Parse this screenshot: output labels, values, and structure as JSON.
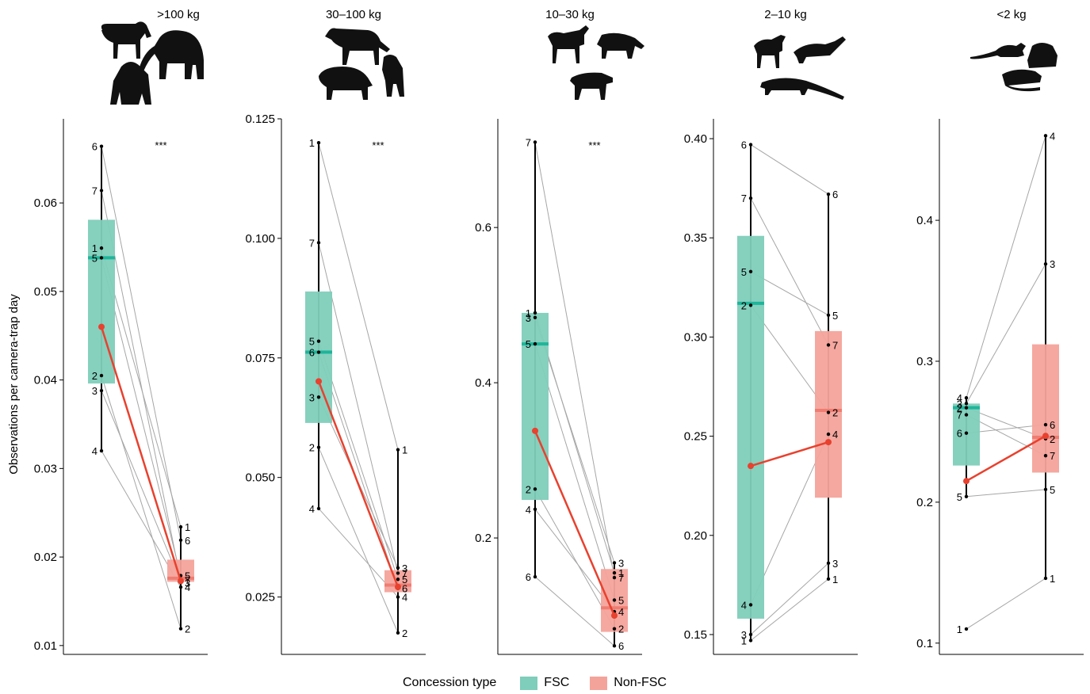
{
  "y_axis_label": "Observations per camera-trap day",
  "legend": {
    "title": "Concession type",
    "items": [
      {
        "label": "FSC",
        "color": "#7fcdbb"
      },
      {
        "label": "Non-FSC",
        "color": "#f4a39b"
      }
    ]
  },
  "colors": {
    "fsc_box": "#7fcdbb",
    "fsc_median": "#1fb59a",
    "nonfsc_box": "#f4a39b",
    "nonfsc_median": "#ef7d72",
    "mean_line": "#e8412e",
    "pair_line": "#a6a6a6"
  },
  "chart_data": [
    {
      "type": "box",
      "title": ">100 kg",
      "significance": "***",
      "icon": "large-mammals-silhouette-icon",
      "ylim": [
        0.009,
        0.0695
      ],
      "yticks": [
        0.01,
        0.02,
        0.03,
        0.04,
        0.05,
        0.06
      ],
      "tick_labels": [
        "0.01",
        "0.02",
        "0.03",
        "0.04",
        "0.05",
        "0.06"
      ],
      "fsc": {
        "box": {
          "q1": 0.0396,
          "median": 0.0538,
          "q3": 0.0581,
          "min": 0.032,
          "max": 0.0664
        },
        "mean": 0.046,
        "points": [
          {
            "id": "1",
            "y": 0.0549
          },
          {
            "id": "2",
            "y": 0.0405
          },
          {
            "id": "3",
            "y": 0.0388
          },
          {
            "id": "4",
            "y": 0.032
          },
          {
            "id": "5",
            "y": 0.0538
          },
          {
            "id": "6",
            "y": 0.0664
          },
          {
            "id": "7",
            "y": 0.0614
          }
        ]
      },
      "nonfsc": {
        "box": {
          "q1": 0.0172,
          "median": 0.0176,
          "q3": 0.0197,
          "min": 0.0119,
          "max": 0.0234
        },
        "mean": 0.0173,
        "points": [
          {
            "id": "1",
            "y": 0.0234
          },
          {
            "id": "2",
            "y": 0.0119
          },
          {
            "id": "3",
            "y": 0.0171
          },
          {
            "id": "4",
            "y": 0.0166
          },
          {
            "id": "5",
            "y": 0.0179
          },
          {
            "id": "6",
            "y": 0.0219
          },
          {
            "id": "7",
            "y": 0.0174
          }
        ]
      }
    },
    {
      "type": "box",
      "title": "30–100 kg",
      "significance": "***",
      "icon": "medium-large-mammals-silhouette-icon",
      "ylim": [
        0.013,
        0.125
      ],
      "yticks": [
        0.025,
        0.05,
        0.075,
        0.1,
        0.125
      ],
      "tick_labels": [
        "0.025",
        "0.050",
        "0.075",
        "0.100",
        "0.125"
      ],
      "fsc": {
        "box": {
          "q1": 0.0614,
          "median": 0.0762,
          "q3": 0.0889,
          "min": 0.0435,
          "max": 0.12
        },
        "mean": 0.0701,
        "points": [
          {
            "id": "1",
            "y": 0.12
          },
          {
            "id": "2",
            "y": 0.0563
          },
          {
            "id": "3",
            "y": 0.0668
          },
          {
            "id": "4",
            "y": 0.0435
          },
          {
            "id": "5",
            "y": 0.0785
          },
          {
            "id": "6",
            "y": 0.0762
          },
          {
            "id": "7",
            "y": 0.0991
          }
        ]
      },
      "nonfsc": {
        "box": {
          "q1": 0.026,
          "median": 0.0275,
          "q3": 0.0306,
          "min": 0.0175,
          "max": 0.0558
        },
        "mean": 0.0271,
        "points": [
          {
            "id": "1",
            "y": 0.0558
          },
          {
            "id": "2",
            "y": 0.0175
          },
          {
            "id": "3",
            "y": 0.0311
          },
          {
            "id": "4",
            "y": 0.025
          },
          {
            "id": "5",
            "y": 0.0287
          },
          {
            "id": "6",
            "y": 0.0268
          },
          {
            "id": "7",
            "y": 0.03
          }
        ]
      }
    },
    {
      "type": "box",
      "title": "10–30 kg",
      "significance": "***",
      "icon": "medium-mammals-silhouette-icon",
      "ylim": [
        0.05,
        0.74
      ],
      "yticks": [
        0.2,
        0.4,
        0.6
      ],
      "tick_labels": [
        "0.2",
        "0.4",
        "0.6"
      ],
      "fsc": {
        "box": {
          "q1": 0.249,
          "median": 0.45,
          "q3": 0.49,
          "min": 0.15,
          "max": 0.71
        },
        "mean": 0.338,
        "points": [
          {
            "id": "1",
            "y": 0.49
          },
          {
            "id": "2",
            "y": 0.263
          },
          {
            "id": "3",
            "y": 0.484
          },
          {
            "id": "4",
            "y": 0.237
          },
          {
            "id": "5",
            "y": 0.45
          },
          {
            "id": "6",
            "y": 0.15
          },
          {
            "id": "7",
            "y": 0.71
          }
        ]
      },
      "nonfsc": {
        "box": {
          "q1": 0.079,
          "median": 0.11,
          "q3": 0.16,
          "min": 0.061,
          "max": 0.168
        },
        "mean": 0.1,
        "points": [
          {
            "id": "1",
            "y": 0.155
          },
          {
            "id": "2",
            "y": 0.083
          },
          {
            "id": "3",
            "y": 0.168
          },
          {
            "id": "4",
            "y": 0.105
          },
          {
            "id": "5",
            "y": 0.12
          },
          {
            "id": "6",
            "y": 0.061
          },
          {
            "id": "7",
            "y": 0.149
          }
        ]
      }
    },
    {
      "type": "box",
      "title": "2–10 kg",
      "significance": "",
      "icon": "small-mammals-silhouette-icon",
      "ylim": [
        0.14,
        0.41
      ],
      "yticks": [
        0.15,
        0.2,
        0.25,
        0.3,
        0.35,
        0.4
      ],
      "tick_labels": [
        "0.15",
        "0.20",
        "0.25",
        "0.30",
        "0.35",
        "0.40"
      ],
      "fsc": {
        "box": {
          "q1": 0.158,
          "median": 0.317,
          "q3": 0.351,
          "min": 0.147,
          "max": 0.397
        },
        "mean": 0.235,
        "points": [
          {
            "id": "1",
            "y": 0.147
          },
          {
            "id": "2",
            "y": 0.316
          },
          {
            "id": "3",
            "y": 0.15
          },
          {
            "id": "4",
            "y": 0.165
          },
          {
            "id": "5",
            "y": 0.333
          },
          {
            "id": "6",
            "y": 0.397
          },
          {
            "id": "7",
            "y": 0.37
          }
        ]
      },
      "nonfsc": {
        "box": {
          "q1": 0.219,
          "median": 0.263,
          "q3": 0.303,
          "min": 0.178,
          "max": 0.372
        },
        "mean": 0.247,
        "points": [
          {
            "id": "1",
            "y": 0.178
          },
          {
            "id": "2",
            "y": 0.262
          },
          {
            "id": "3",
            "y": 0.186
          },
          {
            "id": "4",
            "y": 0.251
          },
          {
            "id": "5",
            "y": 0.311
          },
          {
            "id": "6",
            "y": 0.372
          },
          {
            "id": "7",
            "y": 0.296
          }
        ]
      }
    },
    {
      "type": "box",
      "title": "<2 kg",
      "significance": "",
      "icon": "rodents-silhouette-icon",
      "ylim": [
        0.092,
        0.472
      ],
      "yticks": [
        0.1,
        0.2,
        0.3,
        0.4
      ],
      "tick_labels": [
        "0.1",
        "0.2",
        "0.3",
        "0.4"
      ],
      "fsc": {
        "box": {
          "q1": 0.226,
          "median": 0.267,
          "q3": 0.27,
          "min": 0.204,
          "max": 0.274
        },
        "mean": 0.215,
        "points": [
          {
            "id": "1",
            "y": 0.11
          },
          {
            "id": "2",
            "y": 0.267
          },
          {
            "id": "3",
            "y": 0.27
          },
          {
            "id": "4",
            "y": 0.274
          },
          {
            "id": "5",
            "y": 0.204
          },
          {
            "id": "6",
            "y": 0.249
          },
          {
            "id": "7",
            "y": 0.262
          }
        ]
      },
      "nonfsc": {
        "box": {
          "q1": 0.221,
          "median": 0.246,
          "q3": 0.312,
          "min": 0.146,
          "max": 0.46
        },
        "mean": 0.247,
        "points": [
          {
            "id": "1",
            "y": 0.146
          },
          {
            "id": "2",
            "y": 0.245
          },
          {
            "id": "3",
            "y": 0.369
          },
          {
            "id": "4",
            "y": 0.46
          },
          {
            "id": "5",
            "y": 0.209
          },
          {
            "id": "6",
            "y": 0.255
          },
          {
            "id": "7",
            "y": 0.233
          }
        ]
      }
    }
  ]
}
